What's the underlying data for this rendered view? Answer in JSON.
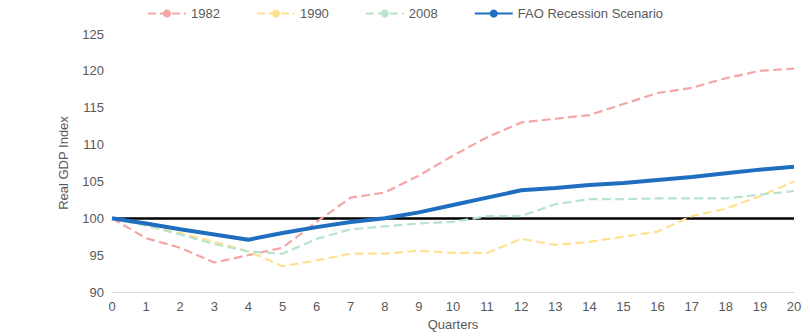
{
  "chart_data": {
    "type": "line",
    "x_label": "Quarters",
    "y_label": "Real GDP Index",
    "x": [
      0,
      1,
      2,
      3,
      4,
      5,
      6,
      7,
      8,
      9,
      10,
      11,
      12,
      13,
      14,
      15,
      16,
      17,
      18,
      19,
      20
    ],
    "xlim": [
      0,
      20
    ],
    "xticks": [
      0,
      1,
      2,
      3,
      4,
      5,
      6,
      7,
      8,
      9,
      10,
      11,
      12,
      13,
      14,
      15,
      16,
      17,
      18,
      19,
      20
    ],
    "ylim": [
      90,
      125
    ],
    "yticks": [
      90,
      95,
      100,
      105,
      110,
      115,
      120,
      125
    ],
    "grid": false,
    "legend": "top",
    "baseline": 100,
    "series": [
      {
        "name": "1982",
        "color": "#f4a6a4",
        "line_style": "dashed",
        "values": [
          100,
          97.3,
          96,
          94,
          95,
          96,
          99.5,
          102.8,
          103.5,
          105.8,
          108.5,
          111,
          113,
          113.5,
          114,
          115.5,
          117,
          117.7,
          119,
          120,
          120.3
        ]
      },
      {
        "name": "1990",
        "color": "#ffe08f",
        "line_style": "dashed",
        "values": [
          100,
          99,
          98,
          96.8,
          95.5,
          93.5,
          94.3,
          95.2,
          95.2,
          95.6,
          95.3,
          95.3,
          97.2,
          96.4,
          96.8,
          97.5,
          98.2,
          100.3,
          101.3,
          103,
          105
        ]
      },
      {
        "name": "2008",
        "color": "#b9e4cc",
        "line_style": "dashed",
        "values": [
          100,
          99,
          97.8,
          96.5,
          95.5,
          95.2,
          97.2,
          98.5,
          98.9,
          99.3,
          99.5,
          100.3,
          100.3,
          101.9,
          102.6,
          102.6,
          102.7,
          102.7,
          102.7,
          103.2,
          103.7
        ]
      },
      {
        "name": "FAO Recession Scenario",
        "color": "#1f6ec0",
        "line_style": "solid",
        "values": [
          100,
          99.3,
          98.5,
          97.8,
          97.1,
          98,
          98.8,
          99.5,
          100,
          100.8,
          101.8,
          102.8,
          103.8,
          104.1,
          104.5,
          104.8,
          105.2,
          105.6,
          106.1,
          106.6,
          107
        ]
      }
    ]
  }
}
